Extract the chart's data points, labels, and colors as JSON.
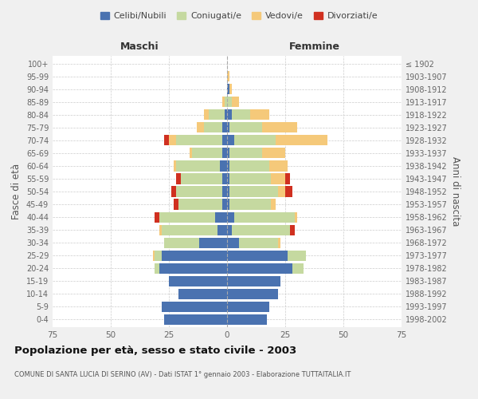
{
  "age_groups": [
    "0-4",
    "5-9",
    "10-14",
    "15-19",
    "20-24",
    "25-29",
    "30-34",
    "35-39",
    "40-44",
    "45-49",
    "50-54",
    "55-59",
    "60-64",
    "65-69",
    "70-74",
    "75-79",
    "80-84",
    "85-89",
    "90-94",
    "95-99",
    "100+"
  ],
  "birth_years": [
    "1998-2002",
    "1993-1997",
    "1988-1992",
    "1983-1987",
    "1978-1982",
    "1973-1977",
    "1968-1972",
    "1963-1967",
    "1958-1962",
    "1953-1957",
    "1948-1952",
    "1943-1947",
    "1938-1942",
    "1933-1937",
    "1928-1932",
    "1923-1927",
    "1918-1922",
    "1913-1917",
    "1908-1912",
    "1903-1907",
    "≤ 1902"
  ],
  "colors": {
    "celibi": "#4a72b0",
    "coniugati": "#c5d9a0",
    "vedovi": "#f5c97a",
    "divorziati": "#d03020"
  },
  "maschi": {
    "celibi": [
      27,
      28,
      21,
      25,
      29,
      28,
      12,
      4,
      5,
      2,
      2,
      2,
      3,
      2,
      2,
      2,
      1,
      0,
      0,
      0,
      0
    ],
    "coniugati": [
      0,
      0,
      0,
      0,
      2,
      3,
      15,
      24,
      24,
      19,
      20,
      18,
      19,
      13,
      20,
      8,
      7,
      1,
      0,
      0,
      0
    ],
    "vedovi": [
      0,
      0,
      0,
      0,
      0,
      1,
      0,
      1,
      0,
      0,
      0,
      0,
      1,
      1,
      3,
      3,
      2,
      1,
      0,
      0,
      0
    ],
    "divorziati": [
      0,
      0,
      0,
      0,
      0,
      0,
      0,
      0,
      2,
      2,
      2,
      2,
      0,
      0,
      2,
      0,
      0,
      0,
      0,
      0,
      0
    ]
  },
  "femmine": {
    "celibi": [
      17,
      18,
      22,
      23,
      28,
      26,
      5,
      2,
      3,
      1,
      1,
      1,
      1,
      1,
      3,
      1,
      2,
      0,
      1,
      0,
      0
    ],
    "coniugati": [
      0,
      0,
      0,
      0,
      5,
      8,
      17,
      25,
      26,
      18,
      21,
      18,
      17,
      14,
      18,
      14,
      8,
      2,
      0,
      0,
      0
    ],
    "vedovi": [
      0,
      0,
      0,
      0,
      0,
      0,
      1,
      0,
      1,
      2,
      3,
      6,
      8,
      10,
      22,
      15,
      8,
      3,
      1,
      1,
      0
    ],
    "divorziati": [
      0,
      0,
      0,
      0,
      0,
      0,
      0,
      2,
      0,
      0,
      3,
      2,
      0,
      0,
      0,
      0,
      0,
      0,
      0,
      0,
      0
    ]
  },
  "xlim": 75,
  "title": "Popolazione per età, sesso e stato civile - 2003",
  "subtitle": "COMUNE DI SANTA LUCIA DI SERINO (AV) - Dati ISTAT 1° gennaio 2003 - Elaborazione TUTTAITALIA.IT",
  "ylabel": "Fasce di età",
  "ylabel_right": "Anni di nascita",
  "legend_labels": [
    "Celibi/Nubili",
    "Coniugati/e",
    "Vedovi/e",
    "Divorziati/e"
  ],
  "maschi_label": "Maschi",
  "femmine_label": "Femmine",
  "bg_color": "#f0f0f0",
  "plot_bg_color": "#ffffff"
}
